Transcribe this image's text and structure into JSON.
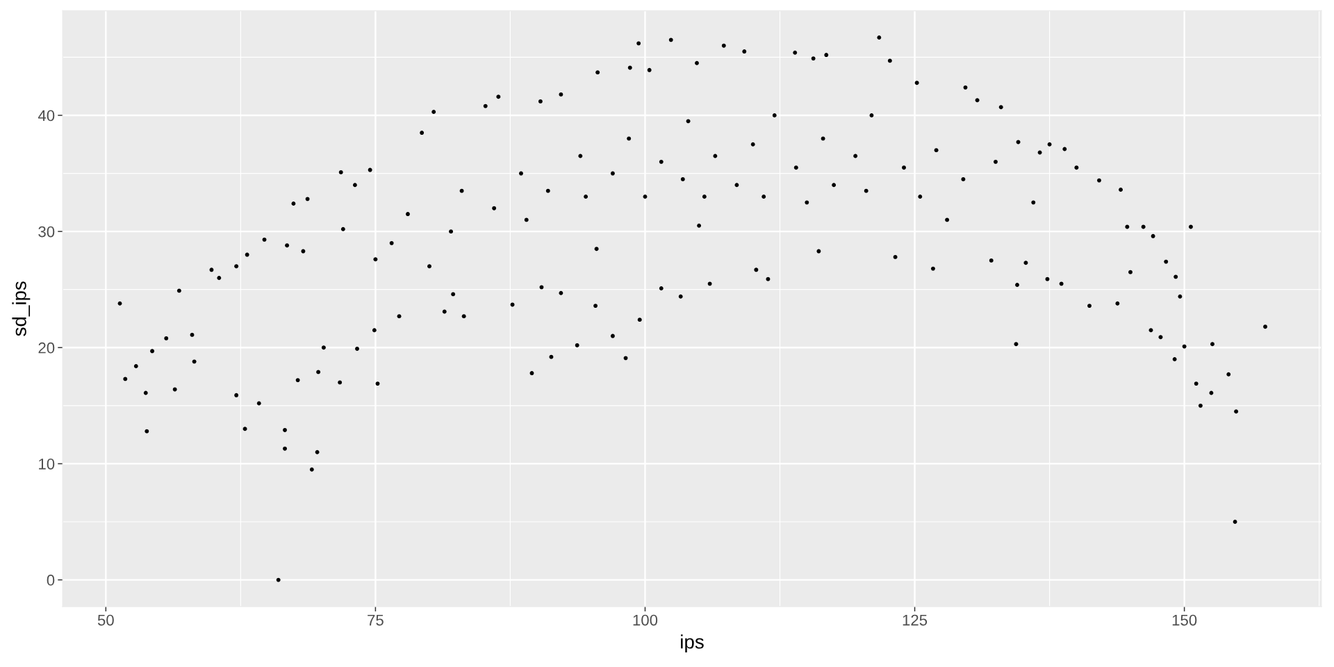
{
  "chart_data": {
    "type": "scatter",
    "xlabel": "ips",
    "ylabel": "sd_ips",
    "x": [
      51.3,
      51.8,
      52.8,
      53.7,
      53.8,
      54.3,
      55.6,
      56.4,
      56.8,
      58.0,
      58.2,
      59.8,
      60.5,
      62.1,
      62.1,
      62.9,
      63.1,
      64.2,
      64.7,
      66.0,
      66.6,
      66.6,
      66.8,
      67.4,
      67.8,
      68.3,
      68.7,
      69.1,
      69.6,
      69.7,
      70.2,
      71.7,
      71.8,
      72.0,
      73.1,
      73.3,
      74.5,
      74.9,
      75.0,
      75.2,
      77.2,
      76.5,
      78.0,
      79.3,
      80.4,
      80.0,
      81.4,
      82.0,
      82.2,
      83.0,
      83.2,
      85.2,
      86.4,
      86.0,
      87.7,
      88.5,
      89.5,
      89.0,
      90.3,
      90.4,
      91.0,
      91.3,
      92.2,
      92.2,
      93.7,
      94.0,
      94.5,
      95.4,
      95.6,
      95.5,
      97.0,
      97.0,
      98.2,
      98.6,
      98.5,
      99.4,
      99.5,
      100.4,
      100.0,
      101.5,
      101.5,
      102.4,
      103.3,
      103.5,
      104.0,
      104.8,
      105.0,
      105.5,
      106.0,
      106.5,
      107.3,
      108.5,
      109.2,
      110.0,
      110.3,
      111.0,
      111.4,
      112.0,
      113.9,
      114.0,
      115.0,
      115.6,
      116.1,
      116.5,
      116.8,
      117.5,
      119.5,
      120.5,
      121.7,
      121.0,
      122.7,
      123.2,
      124.0,
      125.2,
      125.5,
      126.7,
      127.0,
      128.0,
      129.7,
      129.5,
      130.8,
      132.1,
      132.5,
      133.0,
      134.4,
      134.5,
      134.6,
      135.3,
      136.0,
      136.6,
      137.3,
      137.5,
      138.6,
      138.9,
      140.0,
      141.2,
      142.1,
      143.8,
      144.1,
      144.7,
      145.0,
      146.2,
      146.9,
      147.1,
      147.8,
      148.3,
      149.1,
      149.2,
      149.6,
      150.0,
      150.6,
      151.1,
      151.5,
      152.5,
      152.6,
      154.1,
      154.7,
      154.8,
      157.5
    ],
    "values": [
      23.8,
      17.3,
      18.4,
      16.1,
      12.8,
      19.7,
      20.8,
      16.4,
      24.9,
      21.1,
      18.8,
      26.7,
      26.0,
      27.0,
      15.9,
      13.0,
      28.0,
      15.2,
      29.3,
      0.0,
      12.9,
      11.3,
      28.8,
      32.4,
      17.2,
      28.3,
      32.8,
      9.5,
      11.0,
      17.9,
      20.0,
      17.0,
      35.1,
      30.2,
      34.0,
      19.9,
      35.3,
      21.5,
      27.6,
      16.9,
      22.7,
      29.0,
      31.5,
      38.5,
      40.3,
      27.0,
      23.1,
      30.0,
      24.6,
      33.5,
      22.7,
      40.8,
      41.6,
      32.0,
      23.7,
      35.0,
      17.8,
      31.0,
      41.2,
      25.2,
      33.5,
      19.2,
      41.8,
      24.7,
      20.2,
      36.5,
      33.0,
      23.6,
      43.7,
      28.5,
      21.0,
      35.0,
      19.1,
      44.1,
      38.0,
      46.2,
      22.4,
      43.9,
      33.0,
      25.1,
      36.0,
      46.5,
      24.4,
      34.5,
      39.5,
      44.5,
      30.5,
      33.0,
      25.5,
      36.5,
      46.0,
      34.0,
      45.5,
      37.5,
      26.7,
      33.0,
      25.9,
      40.0,
      45.4,
      35.5,
      32.5,
      44.9,
      28.3,
      38.0,
      45.2,
      34.0,
      36.5,
      33.5,
      46.7,
      40.0,
      44.7,
      27.8,
      35.5,
      42.8,
      33.0,
      26.8,
      37.0,
      31.0,
      42.4,
      34.5,
      41.3,
      27.5,
      36.0,
      40.7,
      20.3,
      25.4,
      37.7,
      27.3,
      32.5,
      36.8,
      25.9,
      37.5,
      25.5,
      37.1,
      35.5,
      23.6,
      34.4,
      23.8,
      33.6,
      30.4,
      26.5,
      30.4,
      21.5,
      29.6,
      20.9,
      27.4,
      19.0,
      26.1,
      24.4,
      20.1,
      30.4,
      16.9,
      15.0,
      16.1,
      20.3,
      17.7,
      5.0,
      14.5,
      21.8
    ],
    "color": "#000000",
    "marker": "circle",
    "xlim": [
      46.0,
      162.7
    ],
    "ylim": [
      -2.3,
      49.0
    ],
    "xticks": [
      50,
      75,
      100,
      125,
      150
    ],
    "yticks": [
      0,
      10,
      20,
      30,
      40
    ],
    "grid": true
  }
}
